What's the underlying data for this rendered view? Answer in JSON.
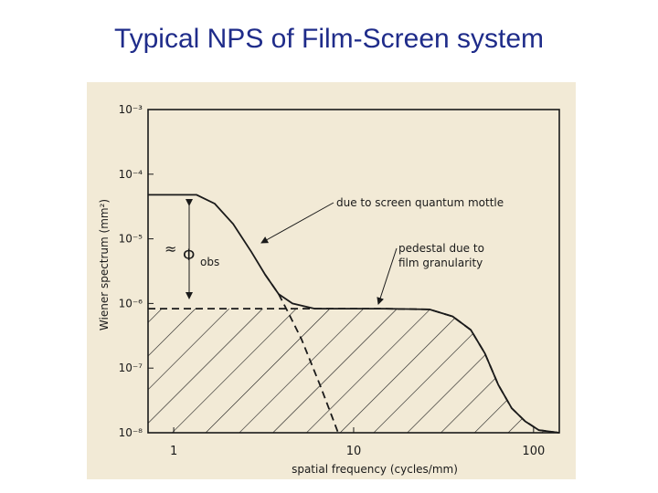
{
  "chart_data": {
    "type": "line",
    "title": "Typical NPS of Film-Screen system",
    "xlabel": "spatial frequency (cycles/mm)",
    "ylabel": "Wiener spectrum (mm²)",
    "xscale": "log",
    "yscale": "log",
    "xlim": [
      0.72,
      139
    ],
    "ylim": [
      1e-08,
      0.001
    ],
    "xticks": [
      1,
      10,
      100
    ],
    "yticks": [
      {
        "value": 0.001,
        "label": "10⁻³"
      },
      {
        "value": 0.0001,
        "label": "10⁻⁴"
      },
      {
        "value": 1e-05,
        "label": "10⁻⁵"
      },
      {
        "value": 1e-06,
        "label": "10⁻⁶"
      },
      {
        "value": 1e-07,
        "label": "10⁻⁷"
      },
      {
        "value": 1e-08,
        "label": "10⁻⁸"
      }
    ],
    "series": [
      {
        "color": "#1a1a1a",
        "style": "solid",
        "x": [
          0.72,
          1.34,
          1.69,
          2.14,
          2.7,
          3.22,
          3.83,
          4.57,
          6.07,
          14.7,
          26.4,
          35.5,
          44.8,
          53.6,
          63.7,
          75.6,
          89.9,
          107,
          139
        ],
        "values": [
          4.8e-05,
          4.8e-05,
          3.5e-05,
          1.7e-05,
          6.3e-06,
          2.8e-06,
          1.4e-06,
          1e-06,
          8.3e-07,
          8.3e-07,
          8.1e-07,
          6.3e-07,
          3.9e-07,
          1.7e-07,
          5.5e-08,
          2.4e-08,
          1.5e-08,
          1.1e-08,
          1e-08
        ]
      },
      {
        "color": "#1a1a1a",
        "style": "dashed",
        "fill": "hatch",
        "x": [
          0.72,
          6.07,
          14.7,
          26.4,
          35.5,
          44.8,
          53.6,
          63.7,
          75.6,
          89.9,
          107,
          139
        ],
        "values": [
          8.3e-07,
          8.3e-07,
          8.3e-07,
          8.1e-07,
          6.3e-07,
          3.9e-07,
          1.7e-07,
          5.5e-08,
          2.4e-08,
          1.5e-08,
          1.1e-08,
          1e-08
        ]
      },
      {
        "color": "#1a1a1a",
        "style": "dashed",
        "x": [
          3.22,
          3.83,
          4.3,
          5.13,
          6.5,
          8.2
        ],
        "values": [
          2.8e-06,
          1.4e-06,
          7.5e-07,
          2.8e-07,
          5.5e-08,
          1e-08
        ]
      }
    ],
    "annotations": [
      "due to screen quantum mottle",
      "pedestal due to",
      "film granularity",
      "≈",
      "Φ",
      "obs"
    ]
  }
}
